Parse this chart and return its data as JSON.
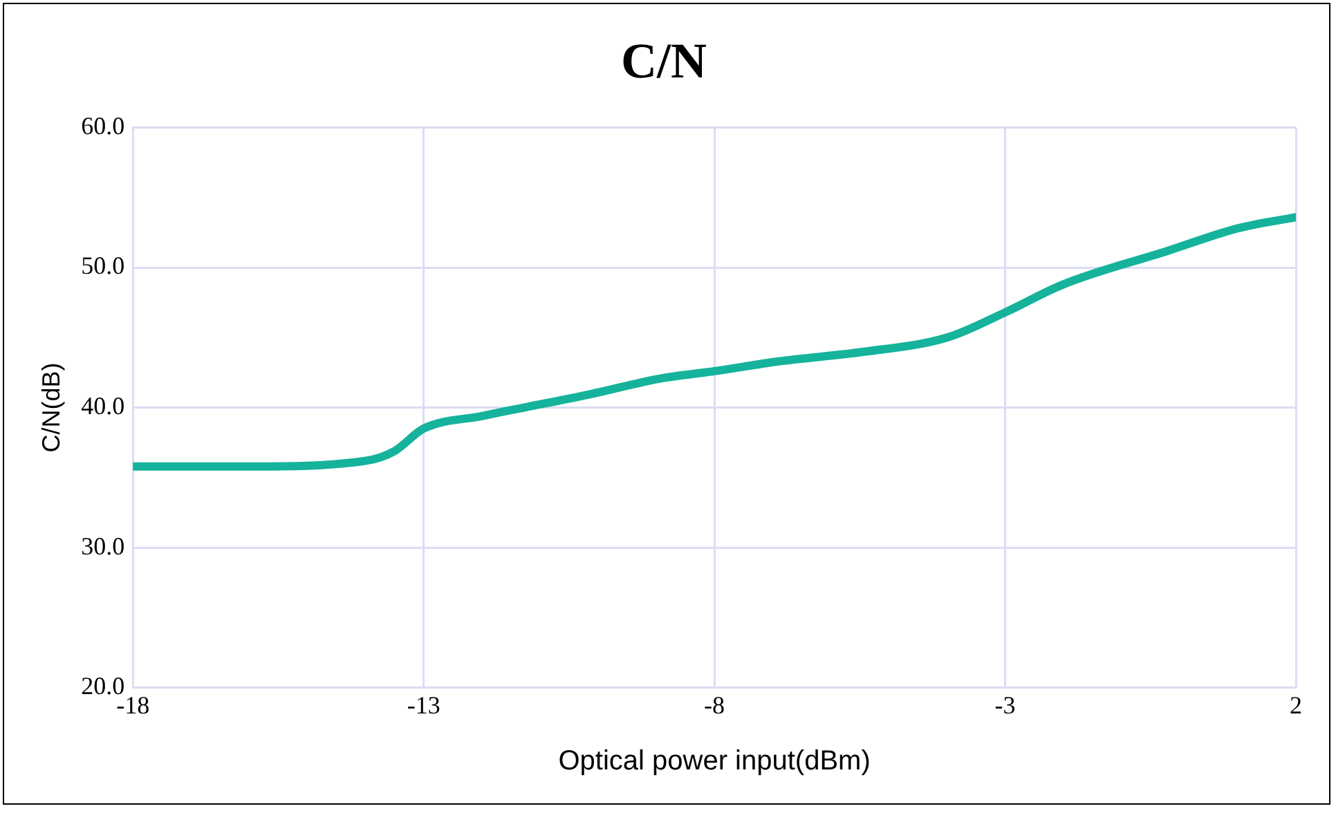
{
  "chart_data": {
    "type": "line",
    "title": "C/N",
    "xlabel": "Optical power input(dBm)",
    "ylabel": "C/N(dB)",
    "x": [
      -18,
      -16,
      -14,
      -13.5,
      -13,
      -12,
      -11.4,
      -10.2,
      -8.9,
      -8,
      -6.9,
      -5.4,
      -4,
      -3,
      -2,
      -0.2,
      1,
      2
    ],
    "series": [
      {
        "color": "#15b39b",
        "values": [
          35.8,
          35.8,
          36.2,
          36.9,
          38.5,
          39.4,
          39.9,
          40.9,
          42.1,
          42.6,
          43.3,
          44.0,
          45.0,
          46.8,
          48.8,
          51.2,
          52.8,
          53.6
        ]
      }
    ],
    "xlim": [
      -18,
      2
    ],
    "xticks": [
      -18,
      -13,
      -8,
      -3,
      2
    ],
    "ylim": [
      20,
      60
    ],
    "yticks": [
      {
        "value": 20,
        "label": "20.0"
      },
      {
        "value": 30,
        "label": "30.0"
      },
      {
        "value": 40,
        "label": "40.0"
      },
      {
        "value": 50,
        "label": "50.0"
      },
      {
        "value": 60,
        "label": "60.0"
      }
    ],
    "grid": true,
    "legend": false,
    "marker": "none",
    "line_style": "solid"
  }
}
